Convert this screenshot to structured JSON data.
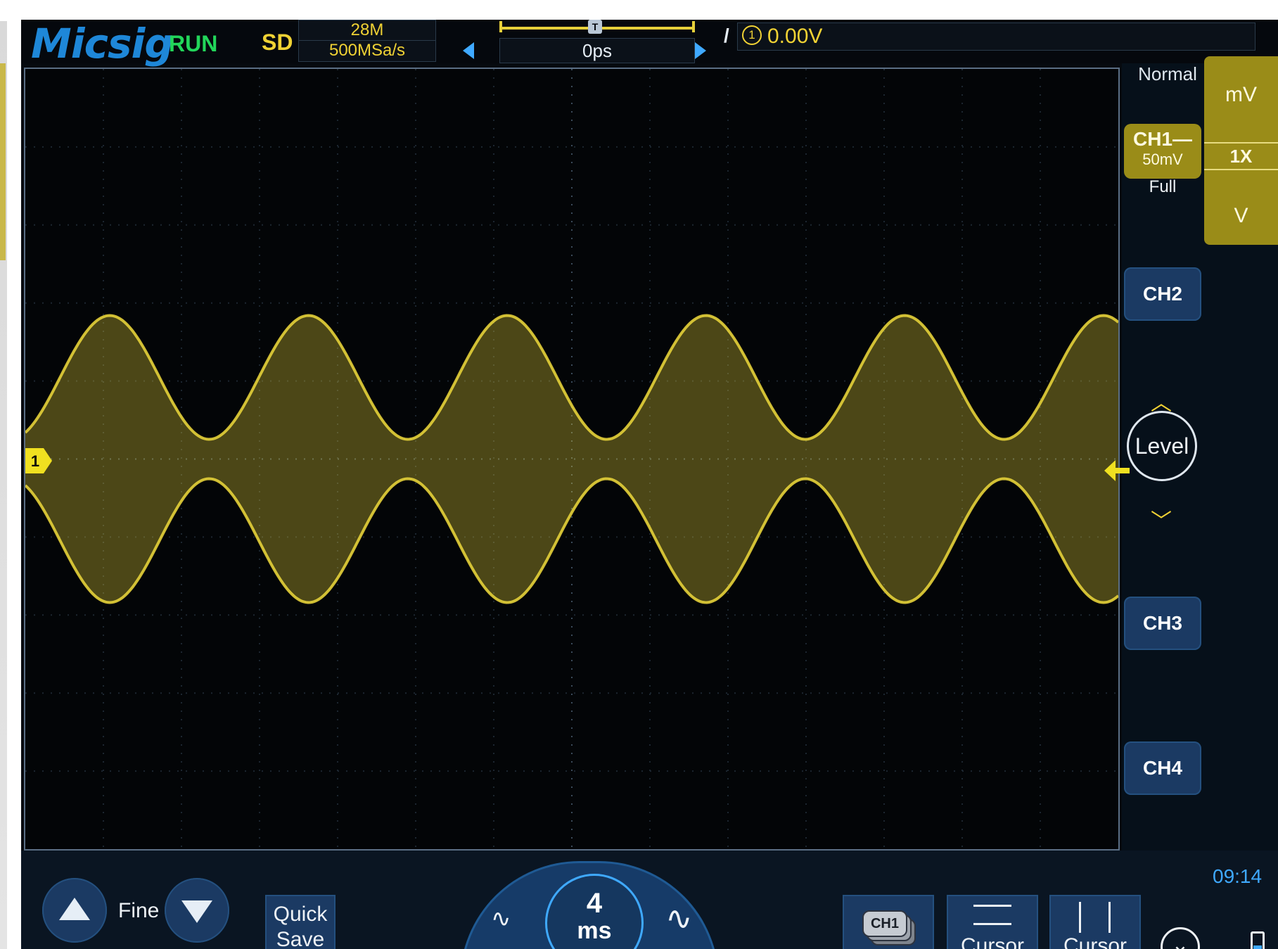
{
  "header": {
    "brand": "Micsig",
    "run_state": "RUN",
    "storage": "SD",
    "memory_depth": "28M",
    "sample_rate": "500MSa/s",
    "horizontal_offset": "0ps",
    "trigger_marker": "T",
    "trigger_edge": "/",
    "trigger_source": "1",
    "trigger_level": "0.00V"
  },
  "right_panel": {
    "trigger_mode": "Normal",
    "ch1": {
      "label": "CH1",
      "scale": "50mV",
      "bandwidth": "Full",
      "coupling_symbol": "—"
    },
    "units": {
      "top": "mV",
      "probe": "1X",
      "bottom": "V"
    },
    "ch2_label": "CH2",
    "ch3_label": "CH3",
    "ch4_label": "CH4",
    "level_label": "Level"
  },
  "waveform": {
    "channel_marker": "1",
    "color": "#e6d23a",
    "type": "amplitude-modulated sine",
    "envelope_cycles_visible": 5.5
  },
  "bottom": {
    "fine_label": "Fine",
    "quick_save_line1": "Quick",
    "quick_save_line2": "Save",
    "timebase_value": "4",
    "timebase_unit": "ms",
    "ref_chip": "CH1",
    "cursor_h_label": "Cursor",
    "cursor_v_label": "Cursor",
    "clock": "09:14"
  }
}
